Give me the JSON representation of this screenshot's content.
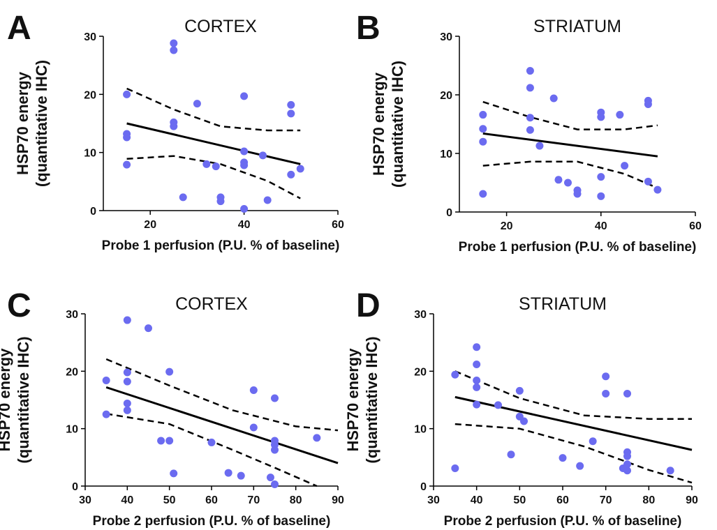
{
  "colors": {
    "point": "#6b6bf0",
    "line": "#000000",
    "text": "#111111"
  },
  "chart_data": [
    {
      "panel_label": "A",
      "type": "scatter",
      "title": "CORTEX",
      "xlabel": "Probe 1 perfusion (P.U. % of baseline)",
      "ylabel": "HSP70 energy\n(quantitative IHC)",
      "xlim": [
        10,
        60
      ],
      "ylim": [
        0,
        30
      ],
      "xticks": [
        20,
        40,
        60
      ],
      "yticks": [
        0,
        10,
        20,
        30
      ],
      "points": [
        [
          15,
          20
        ],
        [
          15,
          13.2
        ],
        [
          15,
          12.6
        ],
        [
          15,
          7.9
        ],
        [
          25,
          28.8
        ],
        [
          25,
          27.6
        ],
        [
          25,
          15.2
        ],
        [
          25,
          14.5
        ],
        [
          27,
          2.3
        ],
        [
          30,
          18.4
        ],
        [
          32,
          8
        ],
        [
          34,
          7.6
        ],
        [
          35,
          2.3
        ],
        [
          35,
          1.6
        ],
        [
          40,
          19.7
        ],
        [
          40,
          10.2
        ],
        [
          40,
          8.3
        ],
        [
          40,
          7.8
        ],
        [
          40,
          0.3
        ],
        [
          44,
          9.5
        ],
        [
          45,
          1.8
        ],
        [
          50,
          18.2
        ],
        [
          50,
          16.7
        ],
        [
          50,
          6.2
        ],
        [
          52,
          7.2
        ]
      ],
      "regression": [
        [
          15,
          15
        ],
        [
          52,
          8
        ]
      ],
      "ci_upper": [
        [
          15,
          21
        ],
        [
          25,
          17.4
        ],
        [
          35,
          14.5
        ],
        [
          45,
          13.8
        ],
        [
          52,
          13.8
        ]
      ],
      "ci_lower": [
        [
          15,
          8.9
        ],
        [
          25,
          9.4
        ],
        [
          35,
          8
        ],
        [
          45,
          5.1
        ],
        [
          52,
          2.1
        ]
      ]
    },
    {
      "panel_label": "B",
      "type": "scatter",
      "title": "STRIATUM",
      "xlabel": "Probe 1 perfusion (P.U. % of baseline)",
      "ylabel": "HSP70 energy\n(quantitative IHC)",
      "xlim": [
        10,
        60
      ],
      "ylim": [
        0,
        30
      ],
      "xticks": [
        20,
        40,
        60
      ],
      "yticks": [
        0,
        10,
        20,
        30
      ],
      "points": [
        [
          15,
          16.6
        ],
        [
          15,
          14.2
        ],
        [
          15,
          12
        ],
        [
          15,
          3.1
        ],
        [
          25,
          24.1
        ],
        [
          25,
          21.2
        ],
        [
          25,
          16.1
        ],
        [
          25,
          14
        ],
        [
          27,
          11.3
        ],
        [
          30,
          19.4
        ],
        [
          31,
          5.5
        ],
        [
          33,
          5
        ],
        [
          35,
          3.7
        ],
        [
          35,
          3.1
        ],
        [
          40,
          17
        ],
        [
          40,
          16.2
        ],
        [
          40,
          6
        ],
        [
          40,
          2.7
        ],
        [
          44,
          16.6
        ],
        [
          45,
          7.9
        ],
        [
          50,
          19
        ],
        [
          50,
          18.4
        ],
        [
          50,
          5.2
        ],
        [
          52,
          3.8
        ]
      ],
      "regression": [
        [
          15,
          13.4
        ],
        [
          52,
          9.5
        ]
      ],
      "ci_upper": [
        [
          15,
          18.8
        ],
        [
          25,
          16.2
        ],
        [
          35,
          14.1
        ],
        [
          45,
          14.1
        ],
        [
          52,
          14.8
        ]
      ],
      "ci_lower": [
        [
          15,
          7.9
        ],
        [
          25,
          8.6
        ],
        [
          35,
          8.6
        ],
        [
          45,
          6.5
        ],
        [
          52,
          4.1
        ]
      ]
    },
    {
      "panel_label": "C",
      "type": "scatter",
      "title": "CORTEX",
      "xlabel": "Probe 2 perfusion (P.U. % of baseline)",
      "ylabel": "HSP70 energy\n(quantitative IHC)",
      "xlim": [
        30,
        90
      ],
      "ylim": [
        0,
        30
      ],
      "xticks": [
        30,
        40,
        50,
        60,
        70,
        80,
        90
      ],
      "yticks": [
        0,
        10,
        20,
        30
      ],
      "points": [
        [
          35,
          18.4
        ],
        [
          35,
          12.5
        ],
        [
          40,
          28.9
        ],
        [
          40,
          19.8
        ],
        [
          40,
          18.2
        ],
        [
          40,
          14.4
        ],
        [
          40,
          13.2
        ],
        [
          45,
          27.5
        ],
        [
          48,
          7.9
        ],
        [
          50,
          19.9
        ],
        [
          50,
          7.9
        ],
        [
          51,
          2.2
        ],
        [
          60,
          7.6
        ],
        [
          64,
          2.3
        ],
        [
          67,
          1.8
        ],
        [
          70,
          16.7
        ],
        [
          70,
          10.2
        ],
        [
          74,
          1.5
        ],
        [
          75,
          15.3
        ],
        [
          75,
          7.9
        ],
        [
          75,
          7.2
        ],
        [
          75,
          6.3
        ],
        [
          75,
          0.3
        ],
        [
          85,
          8.4
        ]
      ],
      "regression": [
        [
          35,
          17.2
        ],
        [
          90,
          4
        ]
      ],
      "ci_upper": [
        [
          35,
          22.1
        ],
        [
          50,
          17.5
        ],
        [
          65,
          13.2
        ],
        [
          80,
          10.4
        ],
        [
          90,
          9.7
        ]
      ],
      "ci_lower": [
        [
          35,
          12.6
        ],
        [
          50,
          10.8
        ],
        [
          65,
          6.3
        ],
        [
          75,
          3.2
        ],
        [
          85,
          0
        ]
      ]
    },
    {
      "panel_label": "D",
      "type": "scatter",
      "title": "STRIATUM",
      "xlabel": "Probe 2 perfusion (P.U. % of baseline)",
      "ylabel": "HSP70 energy\n(quantitative IHC)",
      "xlim": [
        30,
        90
      ],
      "ylim": [
        0,
        30
      ],
      "xticks": [
        30,
        40,
        50,
        60,
        70,
        80,
        90
      ],
      "yticks": [
        0,
        10,
        20,
        30
      ],
      "points": [
        [
          35,
          19.4
        ],
        [
          35,
          3.1
        ],
        [
          40,
          24.2
        ],
        [
          40,
          21.2
        ],
        [
          40,
          18.4
        ],
        [
          40,
          17.2
        ],
        [
          40,
          14.2
        ],
        [
          45,
          14.1
        ],
        [
          48,
          5.5
        ],
        [
          50,
          16.6
        ],
        [
          50,
          12.1
        ],
        [
          51,
          11.3
        ],
        [
          60,
          4.9
        ],
        [
          64,
          3.5
        ],
        [
          67,
          7.8
        ],
        [
          70,
          19.1
        ],
        [
          70,
          16.1
        ],
        [
          74,
          3.1
        ],
        [
          75,
          16.1
        ],
        [
          75,
          5.9
        ],
        [
          75,
          5.2
        ],
        [
          75,
          3.8
        ],
        [
          75,
          2.7
        ],
        [
          85,
          2.7
        ]
      ],
      "regression": [
        [
          35,
          15.5
        ],
        [
          90,
          6.3
        ]
      ],
      "ci_upper": [
        [
          35,
          20
        ],
        [
          50,
          15.3
        ],
        [
          65,
          12.3
        ],
        [
          80,
          11.7
        ],
        [
          90,
          11.7
        ]
      ],
      "ci_lower": [
        [
          35,
          10.8
        ],
        [
          50,
          10
        ],
        [
          65,
          6.9
        ],
        [
          80,
          2.8
        ],
        [
          90,
          0.6
        ]
      ]
    }
  ]
}
